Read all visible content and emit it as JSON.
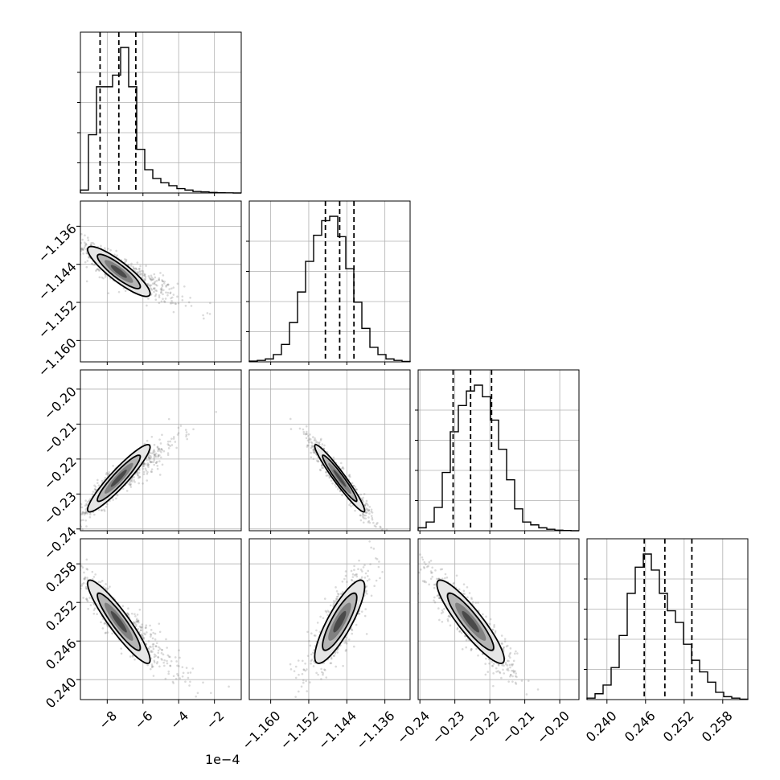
{
  "chart_data": {
    "type": "scatter",
    "plot_kind": "corner",
    "parameters": [
      {
        "index": 0,
        "range": [
          -0.00095,
          -5e-05
        ],
        "median": -0.000735,
        "q16": -0.00084,
        "q84": -0.00064,
        "ticks": [
          -0.0008,
          -0.0006,
          -0.0004,
          -0.0002
        ],
        "tick_labels": [
          "−8",
          "−6",
          "−4",
          "−2"
        ],
        "offset_label": "1e−4"
      },
      {
        "index": 1,
        "range": [
          -1.1645,
          -1.1307
        ],
        "median": -1.1455,
        "q16": -1.1485,
        "q84": -1.1425,
        "ticks": [
          -1.16,
          -1.152,
          -1.144,
          -1.136
        ],
        "tick_labels": [
          "−1.160",
          "−1.152",
          "−1.144",
          "−1.136"
        ]
      },
      {
        "index": 2,
        "range": [
          -0.2405,
          -0.1945
        ],
        "median": -0.2255,
        "q16": -0.2305,
        "q84": -0.2195,
        "ticks": [
          -0.24,
          -0.23,
          -0.22,
          -0.21,
          -0.2
        ],
        "tick_labels": [
          "−0.24",
          "−0.23",
          "−0.22",
          "−0.21",
          "−0.20"
        ]
      },
      {
        "index": 3,
        "range": [
          0.2369,
          0.2619
        ],
        "median": 0.249,
        "q16": 0.2458,
        "q84": 0.2532,
        "ticks": [
          0.24,
          0.246,
          0.252,
          0.258
        ],
        "tick_labels": [
          "0.240",
          "0.246",
          "0.252",
          "0.258"
        ]
      }
    ],
    "histograms": [
      {
        "param": 0,
        "bins": 20,
        "counts": [
          0.02,
          0.4,
          0.73,
          0.73,
          0.81,
          1.0,
          0.73,
          0.3,
          0.16,
          0.1,
          0.07,
          0.05,
          0.03,
          0.02,
          0.01,
          0.008,
          0.004,
          0.002,
          0.001,
          0.0
        ]
      },
      {
        "param": 1,
        "bins": 20,
        "counts": [
          0.005,
          0.01,
          0.02,
          0.05,
          0.12,
          0.27,
          0.48,
          0.69,
          0.87,
          0.97,
          1.0,
          0.86,
          0.64,
          0.41,
          0.23,
          0.1,
          0.05,
          0.02,
          0.01,
          0.003
        ]
      },
      {
        "param": 2,
        "bins": 20,
        "counts": [
          0.02,
          0.06,
          0.16,
          0.4,
          0.68,
          0.86,
          0.96,
          1.0,
          0.92,
          0.76,
          0.56,
          0.35,
          0.15,
          0.06,
          0.04,
          0.02,
          0.01,
          0.004,
          0.002,
          0.0
        ]
      },
      {
        "param": 3,
        "bins": 20,
        "counts": [
          0.01,
          0.04,
          0.1,
          0.22,
          0.44,
          0.73,
          0.91,
          1.0,
          0.89,
          0.73,
          0.61,
          0.53,
          0.38,
          0.27,
          0.19,
          0.12,
          0.05,
          0.02,
          0.01,
          0.003
        ]
      }
    ],
    "correlations": {
      "1,0": -0.88,
      "2,0": 0.93,
      "2,1": -0.96,
      "3,0": -0.92,
      "3,1": 0.84,
      "3,2": -0.9
    },
    "contour_levels_sigma": [
      1,
      2
    ],
    "grid": true,
    "colors": {
      "contour": "#000000",
      "points": "#808080",
      "hist": "#000000",
      "grid": "#b0b0b0"
    }
  }
}
